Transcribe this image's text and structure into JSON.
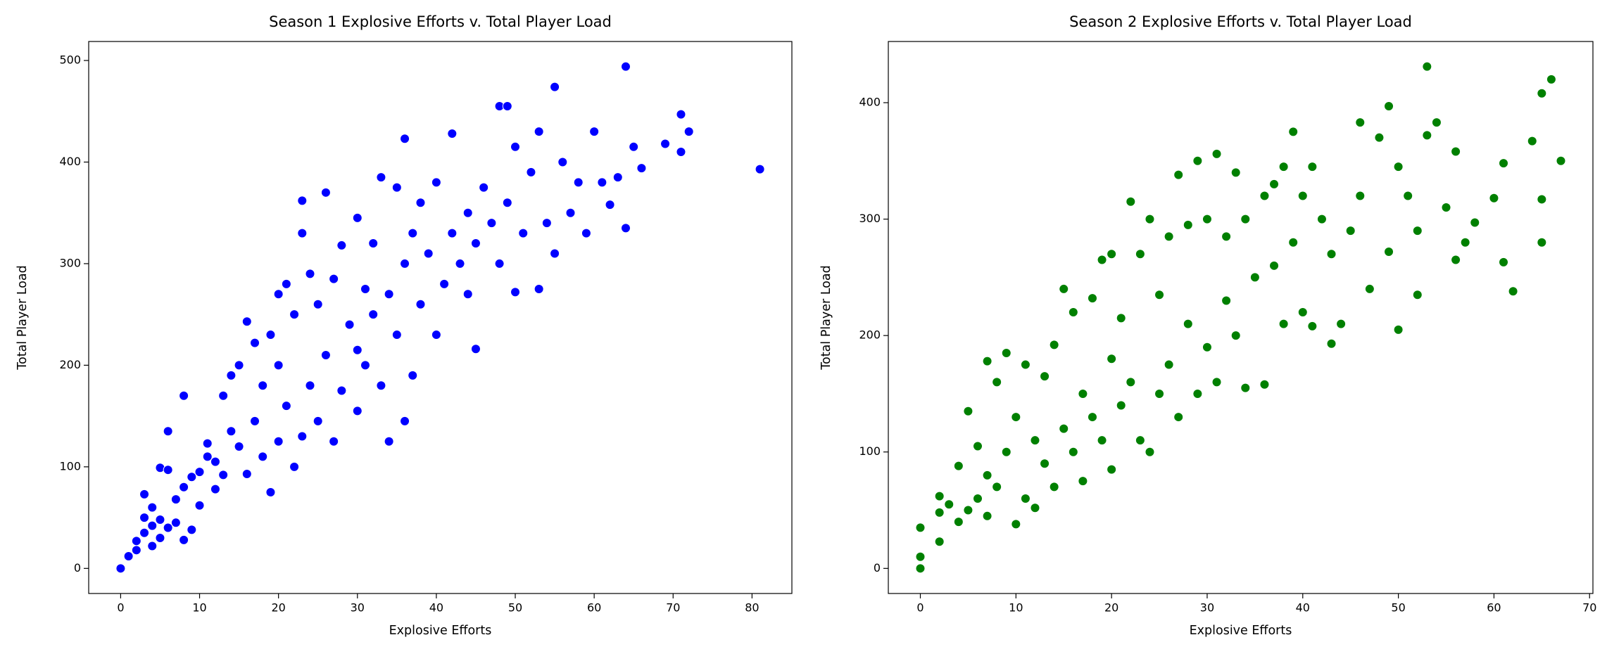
{
  "chart_data": [
    {
      "type": "scatter",
      "title": "Season 1 Explosive Efforts v. Total Player Load",
      "xlabel": "Explosive Efforts",
      "ylabel": "Total Player Load",
      "color": "#0000ff",
      "xlim": [
        -4.05,
        85.05
      ],
      "ylim": [
        -24.7,
        518.7
      ],
      "xticks": [
        0,
        10,
        20,
        30,
        40,
        50,
        60,
        70,
        80
      ],
      "yticks": [
        0,
        100,
        200,
        300,
        400,
        500
      ],
      "x": [
        0,
        1,
        2,
        2,
        3,
        3,
        3,
        4,
        4,
        4,
        5,
        5,
        5,
        6,
        6,
        6,
        7,
        7,
        8,
        8,
        8,
        9,
        9,
        10,
        10,
        11,
        11,
        12,
        12,
        13,
        13,
        14,
        14,
        15,
        15,
        16,
        16,
        17,
        17,
        18,
        18,
        19,
        19,
        20,
        20,
        20,
        21,
        21,
        22,
        22,
        23,
        23,
        23,
        24,
        24,
        25,
        25,
        26,
        26,
        27,
        27,
        28,
        28,
        29,
        30,
        30,
        30,
        31,
        31,
        32,
        32,
        33,
        33,
        34,
        34,
        35,
        35,
        36,
        36,
        36,
        37,
        37,
        38,
        38,
        39,
        40,
        40,
        41,
        42,
        42,
        43,
        44,
        44,
        45,
        45,
        46,
        47,
        48,
        48,
        49,
        49,
        50,
        50,
        51,
        52,
        53,
        53,
        54,
        55,
        55,
        56,
        57,
        58,
        59,
        60,
        61,
        62,
        63,
        64,
        64,
        65,
        66,
        69,
        71,
        71,
        72,
        81
      ],
      "values": [
        0,
        12,
        18,
        27,
        35,
        50,
        73,
        22,
        42,
        60,
        30,
        48,
        99,
        40,
        97,
        135,
        45,
        68,
        28,
        80,
        170,
        38,
        90,
        62,
        95,
        110,
        123,
        78,
        105,
        92,
        170,
        135,
        190,
        120,
        200,
        93,
        243,
        145,
        222,
        110,
        180,
        75,
        230,
        125,
        200,
        270,
        160,
        280,
        100,
        250,
        130,
        362,
        330,
        180,
        290,
        145,
        260,
        370,
        210,
        125,
        285,
        175,
        318,
        240,
        155,
        215,
        345,
        200,
        275,
        250,
        320,
        180,
        385,
        125,
        270,
        230,
        375,
        145,
        300,
        423,
        190,
        330,
        260,
        360,
        310,
        230,
        380,
        280,
        428,
        330,
        300,
        270,
        350,
        216,
        320,
        375,
        340,
        300,
        455,
        455,
        360,
        272,
        415,
        330,
        390,
        275,
        430,
        340,
        474,
        310,
        400,
        350,
        380,
        330,
        430,
        380,
        358,
        385,
        494,
        335,
        415,
        394,
        418,
        447,
        410,
        430,
        393
      ]
    },
    {
      "type": "scatter",
      "title": "Season 2 Explosive Efforts v. Total Player Load",
      "xlabel": "Explosive Efforts",
      "ylabel": "Total Player Load",
      "color": "#008000",
      "xlim": [
        -3.35,
        70.35
      ],
      "ylim": [
        -21.55,
        452.55
      ],
      "xticks": [
        0,
        10,
        20,
        30,
        40,
        50,
        60,
        70
      ],
      "yticks": [
        0,
        100,
        200,
        300,
        400
      ],
      "x": [
        0,
        0,
        0,
        2,
        2,
        2,
        3,
        4,
        4,
        5,
        5,
        6,
        6,
        7,
        7,
        7,
        8,
        8,
        9,
        9,
        10,
        10,
        11,
        11,
        12,
        12,
        13,
        13,
        14,
        14,
        15,
        15,
        16,
        16,
        17,
        17,
        18,
        18,
        19,
        19,
        20,
        20,
        20,
        21,
        21,
        22,
        22,
        23,
        23,
        24,
        24,
        25,
        25,
        26,
        26,
        27,
        27,
        28,
        28,
        29,
        29,
        30,
        30,
        31,
        31,
        32,
        32,
        33,
        33,
        34,
        34,
        35,
        36,
        36,
        37,
        37,
        38,
        38,
        39,
        39,
        40,
        40,
        41,
        41,
        42,
        43,
        43,
        44,
        45,
        46,
        46,
        47,
        48,
        49,
        49,
        50,
        50,
        51,
        52,
        52,
        53,
        53,
        54,
        55,
        56,
        56,
        57,
        58,
        60,
        61,
        61,
        62,
        64,
        65,
        65,
        65,
        66,
        67
      ],
      "values": [
        0,
        10,
        35,
        23,
        48,
        62,
        55,
        40,
        88,
        50,
        135,
        60,
        105,
        45,
        80,
        178,
        70,
        160,
        100,
        185,
        38,
        130,
        60,
        175,
        52,
        110,
        90,
        165,
        70,
        192,
        120,
        240,
        100,
        220,
        75,
        150,
        130,
        232,
        110,
        265,
        85,
        180,
        270,
        140,
        215,
        160,
        315,
        110,
        270,
        100,
        300,
        150,
        235,
        175,
        285,
        130,
        338,
        210,
        295,
        150,
        350,
        190,
        300,
        160,
        356,
        230,
        285,
        200,
        340,
        155,
        300,
        250,
        158,
        320,
        260,
        330,
        210,
        345,
        375,
        280,
        220,
        320,
        208,
        345,
        300,
        193,
        270,
        210,
        290,
        320,
        383,
        240,
        370,
        272,
        397,
        205,
        345,
        320,
        235,
        290,
        431,
        372,
        383,
        310,
        265,
        358,
        280,
        297,
        318,
        263,
        348,
        238,
        367,
        280,
        408,
        317,
        420,
        350
      ]
    }
  ]
}
